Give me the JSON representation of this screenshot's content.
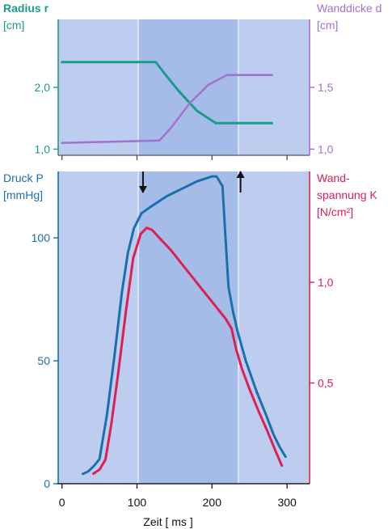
{
  "colors": {
    "teal": "#1a9c8a",
    "purple": "#a56fd0",
    "blue": "#1a6fae",
    "red": "#dc2050",
    "panel": "#bccdf0",
    "systole": "#a5bce8",
    "divider": "#e8eefa"
  },
  "chart_data": [
    {
      "type": "line",
      "panel": "top",
      "left_axis": {
        "label_lines": [
          "Radius r",
          "[cm]"
        ],
        "range": [
          0.9,
          3.1
        ],
        "ticks": [
          {
            "v": 1.0,
            "t": "1,0"
          },
          {
            "v": 2.0,
            "t": "2,0"
          }
        ],
        "color": "#1a9c8a"
      },
      "right_axis": {
        "label_lines": [
          "Wanddicke d",
          "[cm]"
        ],
        "range": [
          0.95,
          2.05
        ],
        "ticks": [
          {
            "v": 1.0,
            "t": "1,0"
          },
          {
            "v": 1.5,
            "t": "1,5"
          }
        ],
        "color": "#a56fd0"
      },
      "series": [
        {
          "axis": "left",
          "color": "#1a9c8a",
          "points": [
            [
              0,
              2.41
            ],
            [
              125,
              2.41
            ],
            [
              135,
              2.25
            ],
            [
              155,
              1.95
            ],
            [
              180,
              1.62
            ],
            [
              205,
              1.42
            ],
            [
              280,
              1.42
            ]
          ]
        },
        {
          "axis": "right",
          "color": "#a56fd0",
          "points": [
            [
              0,
              1.05
            ],
            [
              130,
              1.07
            ],
            [
              145,
              1.17
            ],
            [
              170,
              1.37
            ],
            [
              195,
              1.52
            ],
            [
              220,
              1.6
            ],
            [
              280,
              1.6
            ]
          ]
        }
      ]
    },
    {
      "type": "line",
      "panel": "bottom",
      "x_axis": {
        "label": "Zeit  [ ms ]",
        "range": [
          -5,
          330
        ],
        "ticks": [
          0,
          100,
          200,
          300
        ]
      },
      "left_axis": {
        "label_lines": [
          "Druck P",
          "[mmHg]"
        ],
        "range": [
          0,
          127
        ],
        "ticks": [
          0,
          50,
          100
        ],
        "color": "#1a6fae"
      },
      "right_axis": {
        "label_lines": [
          "Wand-",
          "spannung K",
          "[N/cm²]"
        ],
        "range": [
          0,
          1.55
        ],
        "ticks": [
          {
            "v": 0.5,
            "t": "0,5"
          },
          {
            "v": 1.0,
            "t": "1,0"
          }
        ],
        "color": "#dc2050"
      },
      "series": [
        {
          "name": "Druck P",
          "axis": "left",
          "color": "#1a6fae",
          "points": [
            [
              28,
              4
            ],
            [
              35,
              5
            ],
            [
              42,
              7
            ],
            [
              50,
              10
            ],
            [
              60,
              28
            ],
            [
              70,
              52
            ],
            [
              80,
              78
            ],
            [
              88,
              94
            ],
            [
              96,
              104
            ],
            [
              106,
              110
            ],
            [
              120,
              113
            ],
            [
              140,
              117
            ],
            [
              160,
              120
            ],
            [
              180,
              123
            ],
            [
              200,
              125
            ],
            [
              206,
              125
            ],
            [
              214,
              121
            ],
            [
              218,
              100
            ],
            [
              222,
              80
            ],
            [
              228,
              70
            ],
            [
              234,
              62
            ],
            [
              245,
              50
            ],
            [
              260,
              37
            ],
            [
              272,
              28
            ],
            [
              282,
              20
            ],
            [
              290,
              15
            ],
            [
              298,
              11
            ]
          ]
        },
        {
          "name": "Wandspannung K",
          "axis": "right",
          "color": "#dc2050",
          "points": [
            [
              42,
              0.05
            ],
            [
              50,
              0.07
            ],
            [
              58,
              0.12
            ],
            [
              66,
              0.3
            ],
            [
              75,
              0.55
            ],
            [
              85,
              0.85
            ],
            [
              95,
              1.12
            ],
            [
              105,
              1.24
            ],
            [
              113,
              1.27
            ],
            [
              120,
              1.26
            ],
            [
              130,
              1.22
            ],
            [
              145,
              1.16
            ],
            [
              160,
              1.09
            ],
            [
              175,
              1.02
            ],
            [
              190,
              0.95
            ],
            [
              205,
              0.88
            ],
            [
              218,
              0.82
            ],
            [
              226,
              0.77
            ],
            [
              232,
              0.67
            ],
            [
              240,
              0.57
            ],
            [
              250,
              0.47
            ],
            [
              262,
              0.36
            ],
            [
              274,
              0.26
            ],
            [
              285,
              0.16
            ],
            [
              293,
              0.09
            ]
          ]
        }
      ],
      "markers": [
        {
          "x": 108,
          "dir": "down"
        },
        {
          "x": 238,
          "dir": "up"
        }
      ]
    }
  ]
}
